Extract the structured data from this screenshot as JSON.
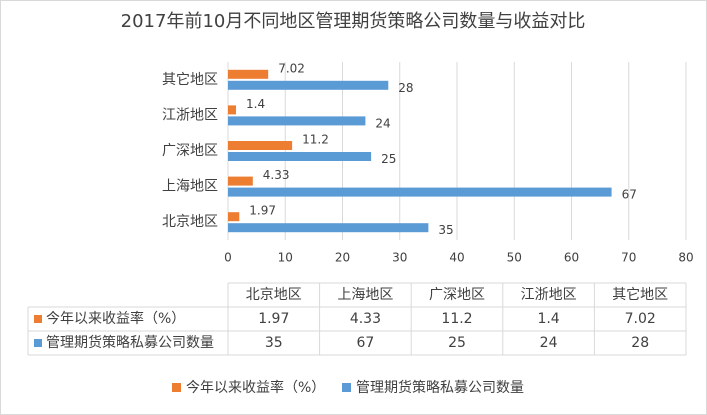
{
  "chart_data": {
    "type": "bar",
    "orientation": "horizontal",
    "title": "2017年前10月不同地区管理期货策略公司数量与收益对比",
    "categories": [
      "北京地区",
      "上海地区",
      "广深地区",
      "江浙地区",
      "其它地区"
    ],
    "series": [
      {
        "name": "今年以来收益率（%）",
        "color": "#ed7d31",
        "values": [
          1.97,
          4.33,
          11.2,
          1.4,
          7.02
        ]
      },
      {
        "name": "管理期货策略私募公司数量",
        "color": "#5b9bd5",
        "values": [
          35,
          67,
          25,
          24,
          28
        ]
      }
    ],
    "xlim": [
      0,
      80
    ],
    "xticks": [
      0,
      10,
      20,
      30,
      40,
      50,
      60,
      70,
      80
    ],
    "grid": true,
    "data_table": true,
    "legend": "bottom"
  }
}
